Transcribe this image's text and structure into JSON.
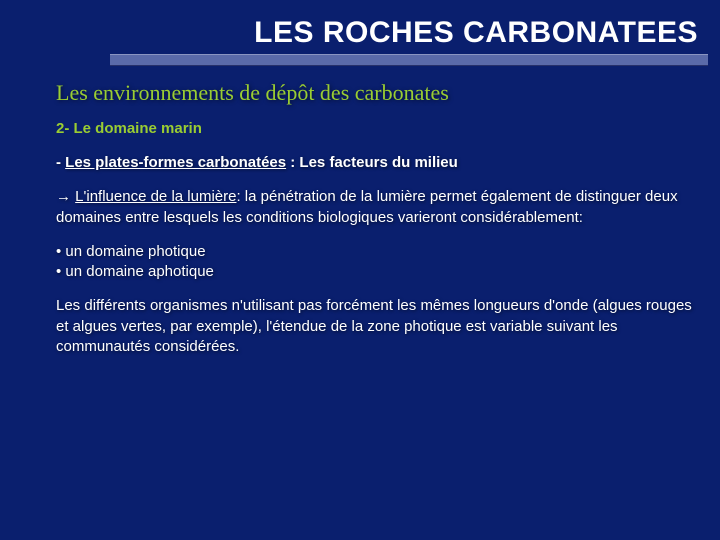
{
  "colors": {
    "background": "#0a1f6e",
    "title_text": "#ffffff",
    "body_text": "#ffffff",
    "accent_text": "#9acd32",
    "rule_fill": "#5a6aa9",
    "rule_top": "#8a95c2",
    "rule_bottom": "#26306a"
  },
  "fonts": {
    "title": {
      "family": "Arial",
      "size_pt": 30,
      "weight": "bold"
    },
    "subtitle": {
      "family": "Lucida Calligraphy",
      "size_pt": 22,
      "weight": "normal"
    },
    "heading2": {
      "family": "Verdana",
      "size_pt": 15,
      "weight": "bold"
    },
    "body": {
      "family": "Verdana",
      "size_pt": 15,
      "weight": "normal"
    }
  },
  "title": "LES ROCHES CARBONATEES",
  "subtitle": "Les environnements de dépôt des carbonates",
  "heading2": "2- Le domaine marin",
  "line_platforms": {
    "prefix": "- ",
    "underlined": "Les plates-formes carbonatées",
    "rest": " : Les facteurs du milieu"
  },
  "line_light": {
    "arrow": "→ ",
    "underlined": "L'influence de la lumière",
    "rest": ": la pénétration de la lumière permet également de distinguer deux domaines entre lesquels les conditions biologiques varieront considérablement:"
  },
  "bullets": {
    "b1": "• un domaine photique",
    "b2": "• un domaine aphotique"
  },
  "para_final": "Les différents organismes n'utilisant pas forcément les mêmes longueurs d'onde (algues rouges et algues vertes, par exemple), l'étendue de la zone photique est variable suivant les communautés considérées."
}
